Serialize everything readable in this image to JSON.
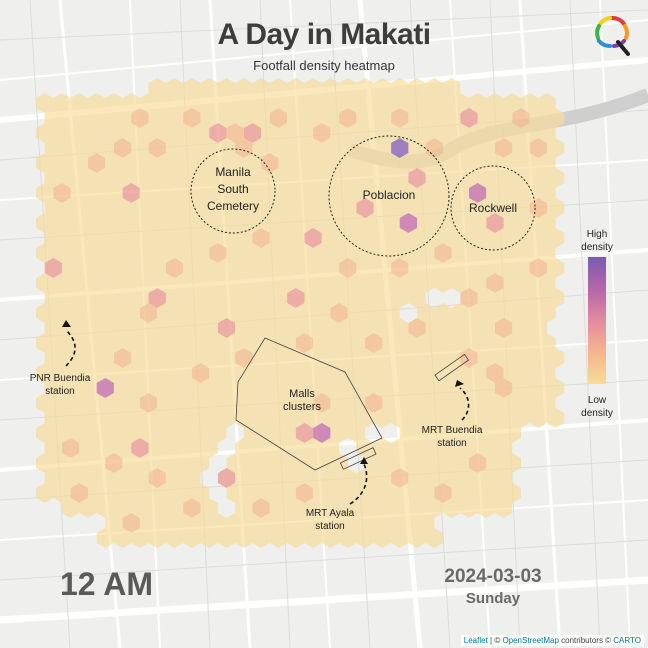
{
  "title": "A Day in Makati",
  "subtitle": "Footfall density heatmap",
  "time": "12 AM",
  "date": "2024-03-03",
  "weekday": "Sunday",
  "legend": {
    "high_line1": "High",
    "high_line2": "density",
    "low_line1": "Low",
    "low_line2": "density",
    "gradient_colors": [
      "#7a5cb0",
      "#b466a8",
      "#e48aa0",
      "#f4b58f",
      "#f8dc9a"
    ]
  },
  "areas": {
    "cemetery_line1": "Manila",
    "cemetery_line2": "South",
    "cemetery_line3": "Cemetery",
    "poblacion": "Poblacion",
    "rockwell": "Rockwell",
    "malls_line1": "Malls",
    "malls_line2": "clusters"
  },
  "stations": {
    "pnr_line1": "PNR Buendia",
    "pnr_line2": "station",
    "mrt_buendia_line1": "MRT Buendia",
    "mrt_buendia_line2": "station",
    "mrt_ayala_line1": "MRT Ayala",
    "mrt_ayala_line2": "station"
  },
  "attribution": {
    "leaflet": "Leaflet",
    "sep": " | © ",
    "osm": "OpenStreetMap",
    "mid": " contributors © ",
    "carto": "CARTO"
  },
  "hex_colors": {
    "base": "#f8dc9a",
    "light": "#f4c08f",
    "medium": "#eb9f96",
    "high": "#c774a8",
    "peak": "#8e66b6"
  },
  "hotspots": [
    {
      "label": "pnr",
      "level": "peak"
    },
    {
      "label": "poblacion",
      "level": "peak"
    },
    {
      "label": "poblacion-2",
      "level": "peak"
    },
    {
      "label": "rockwell",
      "level": "high"
    }
  ]
}
